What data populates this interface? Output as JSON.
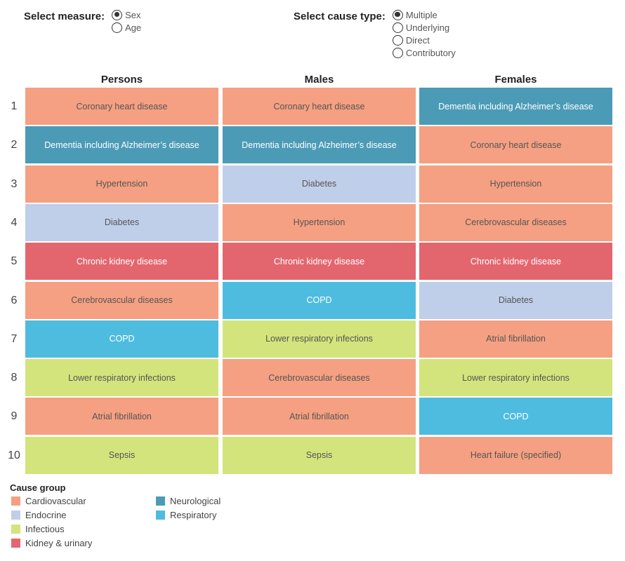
{
  "controls": {
    "measure": {
      "label": "Select measure:",
      "options": [
        "Sex",
        "Age"
      ],
      "selected": "Sex"
    },
    "cause_type": {
      "label": "Select cause type:",
      "options": [
        "Multiple",
        "Underlying",
        "Direct",
        "Contributory"
      ],
      "selected": "Multiple"
    }
  },
  "chart_data": {
    "type": "table",
    "columns": [
      "Persons",
      "Males",
      "Females"
    ],
    "ranks": [
      1,
      2,
      3,
      4,
      5,
      6,
      7,
      8,
      9,
      10
    ],
    "rows": [
      [
        {
          "cause": "Coronary heart disease",
          "group": "Cardiovascular"
        },
        {
          "cause": "Coronary heart disease",
          "group": "Cardiovascular"
        },
        {
          "cause": "Dementia including Alzheimer’s disease",
          "group": "Neurological"
        }
      ],
      [
        {
          "cause": "Dementia including Alzheimer’s disease",
          "group": "Neurological"
        },
        {
          "cause": "Dementia including Alzheimer’s disease",
          "group": "Neurological"
        },
        {
          "cause": "Coronary heart disease",
          "group": "Cardiovascular"
        }
      ],
      [
        {
          "cause": "Hypertension",
          "group": "Cardiovascular"
        },
        {
          "cause": "Diabetes",
          "group": "Endocrine"
        },
        {
          "cause": "Hypertension",
          "group": "Cardiovascular"
        }
      ],
      [
        {
          "cause": "Diabetes",
          "group": "Endocrine"
        },
        {
          "cause": "Hypertension",
          "group": "Cardiovascular"
        },
        {
          "cause": "Cerebrovascular diseases",
          "group": "Cardiovascular"
        }
      ],
      [
        {
          "cause": "Chronic kidney disease",
          "group": "Kidney & urinary"
        },
        {
          "cause": "Chronic kidney disease",
          "group": "Kidney & urinary"
        },
        {
          "cause": "Chronic kidney disease",
          "group": "Kidney & urinary"
        }
      ],
      [
        {
          "cause": "Cerebrovascular diseases",
          "group": "Cardiovascular"
        },
        {
          "cause": "COPD",
          "group": "Respiratory"
        },
        {
          "cause": "Diabetes",
          "group": "Endocrine"
        }
      ],
      [
        {
          "cause": "COPD",
          "group": "Respiratory"
        },
        {
          "cause": "Lower respiratory infections",
          "group": "Infectious"
        },
        {
          "cause": "Atrial fibrillation",
          "group": "Cardiovascular"
        }
      ],
      [
        {
          "cause": "Lower respiratory infections",
          "group": "Infectious"
        },
        {
          "cause": "Cerebrovascular diseases",
          "group": "Cardiovascular"
        },
        {
          "cause": "Lower respiratory infections",
          "group": "Infectious"
        }
      ],
      [
        {
          "cause": "Atrial fibrillation",
          "group": "Cardiovascular"
        },
        {
          "cause": "Atrial fibrillation",
          "group": "Cardiovascular"
        },
        {
          "cause": "COPD",
          "group": "Respiratory"
        }
      ],
      [
        {
          "cause": "Sepsis",
          "group": "Infectious"
        },
        {
          "cause": "Sepsis",
          "group": "Infectious"
        },
        {
          "cause": "Heart failure (specified)",
          "group": "Cardiovascular"
        }
      ]
    ],
    "legend": {
      "title": "Cause group",
      "placement": "bottom-left",
      "items": [
        {
          "name": "Cardiovascular",
          "color": "#f5a082"
        },
        {
          "name": "Endocrine",
          "color": "#bfcfea"
        },
        {
          "name": "Infectious",
          "color": "#d4e47c"
        },
        {
          "name": "Kidney & urinary",
          "color": "#e3666f"
        },
        {
          "name": "Neurological",
          "color": "#4c9bb6"
        },
        {
          "name": "Respiratory",
          "color": "#4ebcde"
        }
      ]
    }
  }
}
